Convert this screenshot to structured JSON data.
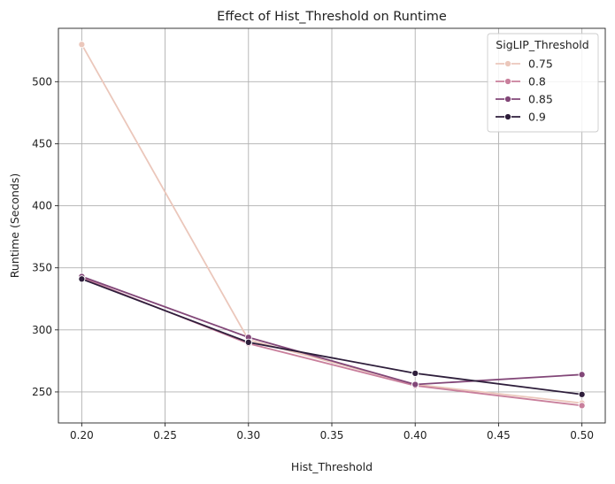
{
  "chart_data": {
    "type": "line",
    "title": "Effect of Hist_Threshold on Runtime",
    "xlabel": "Hist_Threshold",
    "ylabel": "Runtime (Seconds)",
    "x": [
      0.2,
      0.3,
      0.4,
      0.5
    ],
    "x_ticks": [
      "0.20",
      "0.25",
      "0.30",
      "0.35",
      "0.40",
      "0.45",
      "0.50"
    ],
    "y_ticks": [
      "250",
      "300",
      "350",
      "400",
      "450",
      "500"
    ],
    "xlim": [
      0.186,
      0.514
    ],
    "ylim": [
      225,
      543
    ],
    "grid": true,
    "legend_title": "SigLIP_Threshold",
    "legend_position": "top-right",
    "series": [
      {
        "name": "0.75",
        "color": "#ebc7bb",
        "values": [
          530,
          292,
          256,
          241
        ]
      },
      {
        "name": "0.8",
        "color": "#c97f9c",
        "values": [
          342,
          289,
          255,
          239
        ]
      },
      {
        "name": "0.85",
        "color": "#824778",
        "values": [
          343,
          294,
          256,
          264
        ]
      },
      {
        "name": "0.9",
        "color": "#2e1e3b",
        "values": [
          341,
          290,
          265,
          248
        ]
      }
    ]
  }
}
